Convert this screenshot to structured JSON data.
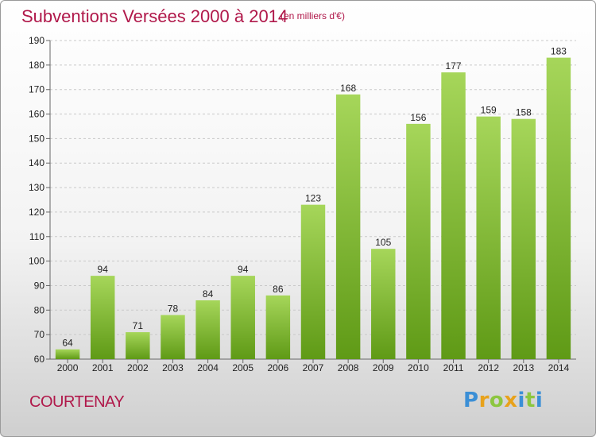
{
  "title": "Subventions Versées 2000 à 2014",
  "subtitle": "(en milliers d'€)",
  "commune": "COURTENAY",
  "logo": {
    "letters": [
      "P",
      "r",
      "o",
      "x",
      "i",
      "t",
      "i"
    ],
    "colors": [
      "#3b8fd6",
      "#e8a21b",
      "#8cc63f",
      "#e8a21b",
      "#3b8fd6",
      "#8cc63f",
      "#3b8fd6"
    ]
  },
  "colors": {
    "bar_light": "#a6d65a",
    "bar_dark": "#5f9a16",
    "title": "#b0184a"
  },
  "chart_data": {
    "type": "bar",
    "categories": [
      "2000",
      "2001",
      "2002",
      "2003",
      "2004",
      "2005",
      "2006",
      "2007",
      "2008",
      "2009",
      "2010",
      "2011",
      "2012",
      "2013",
      "2014"
    ],
    "values": [
      64,
      94,
      71,
      78,
      84,
      94,
      86,
      123,
      168,
      105,
      156,
      177,
      159,
      158,
      183
    ],
    "ylim": [
      60,
      190
    ],
    "yticks": [
      60,
      70,
      80,
      90,
      100,
      110,
      120,
      130,
      140,
      150,
      160,
      170,
      180,
      190
    ],
    "grid": true,
    "title": "Subventions Versées 2000 à 2014",
    "xlabel": "",
    "ylabel": ""
  }
}
